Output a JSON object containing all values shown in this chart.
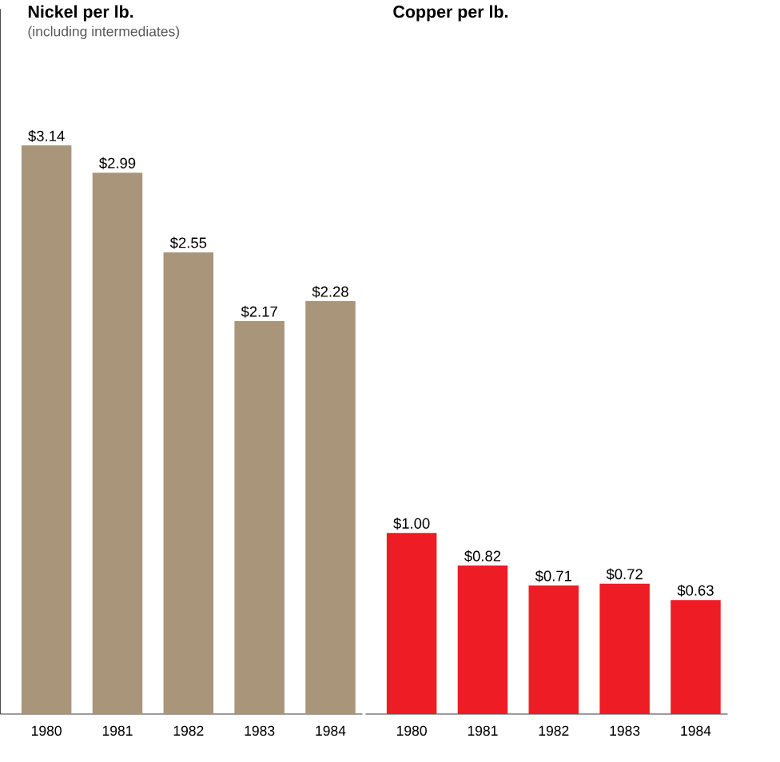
{
  "chart_data": [
    {
      "type": "bar",
      "title": "Nickel per lb.",
      "subtitle": "(including intermediates)",
      "categories": [
        "1980",
        "1981",
        "1982",
        "1983",
        "1984"
      ],
      "values": [
        3.14,
        2.99,
        2.55,
        2.17,
        2.28
      ],
      "value_labels": [
        "$3.14",
        "$2.99",
        "$2.55",
        "$2.17",
        "$2.28"
      ],
      "color": "#a8957a"
    },
    {
      "type": "bar",
      "title": "Copper per lb.",
      "categories": [
        "1980",
        "1981",
        "1982",
        "1983",
        "1984"
      ],
      "values": [
        1.0,
        0.82,
        0.71,
        0.72,
        0.63
      ],
      "value_labels": [
        "$1.00",
        "$0.82",
        "$0.71",
        "$0.72",
        "$0.63"
      ],
      "color": "#ee1c25"
    }
  ]
}
